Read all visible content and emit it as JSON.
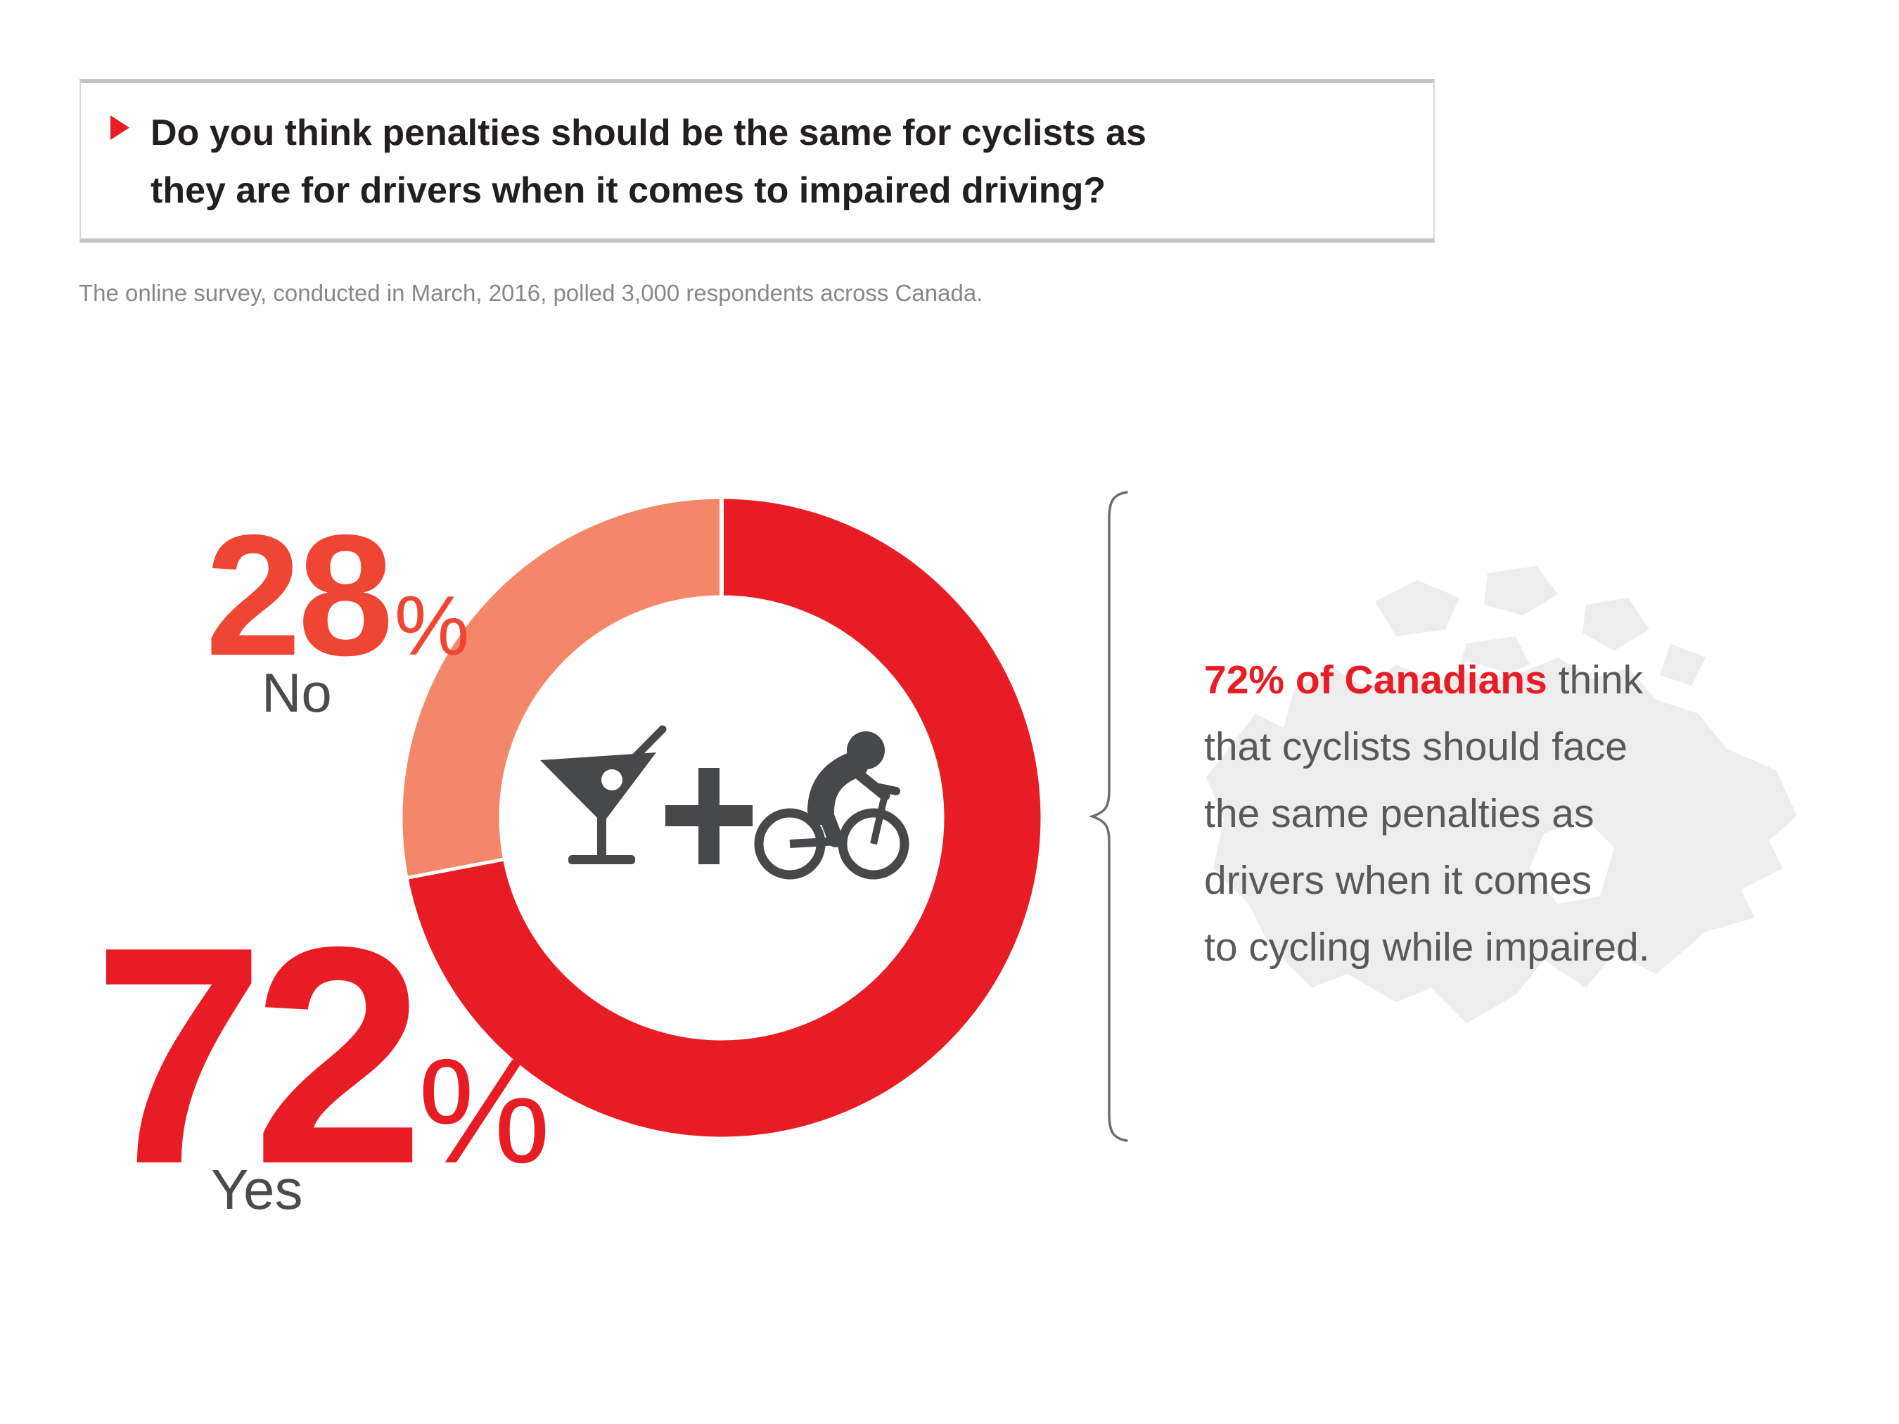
{
  "question": {
    "line1": "Do you think penalties should be the same for cyclists as",
    "line2": "they are for drivers when it comes to impaired driving?"
  },
  "survey_note": "The online survey, conducted in March, 2016, polled 3,000 respondents across Canada.",
  "chart_data": {
    "type": "pie",
    "subtype": "donut",
    "title": "Do you think penalties should be the same for cyclists as they are for drivers when it comes to impaired driving?",
    "categories": [
      "Yes",
      "No"
    ],
    "values": [
      72,
      28
    ],
    "unit": "%",
    "colors": [
      "#e81c24",
      "#f4876a"
    ],
    "start_angle_deg": 0,
    "direction": "clockwise",
    "labels_position": "left",
    "center_icons": [
      "martini-glass-icon",
      "plus-icon",
      "cyclist-icon"
    ],
    "annotation": "72% of Canadians think that cyclists should face the same penalties as drivers when it comes to cycling while impaired."
  },
  "chart_labels": {
    "no": {
      "value": "28",
      "unit": "%",
      "label": "No"
    },
    "yes": {
      "value": "72",
      "unit": "%",
      "label": "Yes"
    }
  },
  "statement": {
    "line1_highlight": "72% of Canadians",
    "line1_rest": " think",
    "line2": "that cyclists should face",
    "line3": "the same penalties as",
    "line4": "drivers when it comes",
    "line5": "to cycling while impaired."
  },
  "colors": {
    "accent_red": "#e81c24",
    "no_number_red": "#ef4634",
    "donut_no_salmon": "#f4876a",
    "icon_gray": "#47484a",
    "label_gray": "#4a4b4d",
    "paragraph_gray": "#58595b",
    "subtitle_gray": "#85878a",
    "question_text": "#231f20",
    "box_border": "#d8d8d8",
    "box_border_strong": "#c4c6c6",
    "brace_gray": "#6d6e71",
    "map_gray": "#ededee",
    "white": "#ffffff"
  }
}
